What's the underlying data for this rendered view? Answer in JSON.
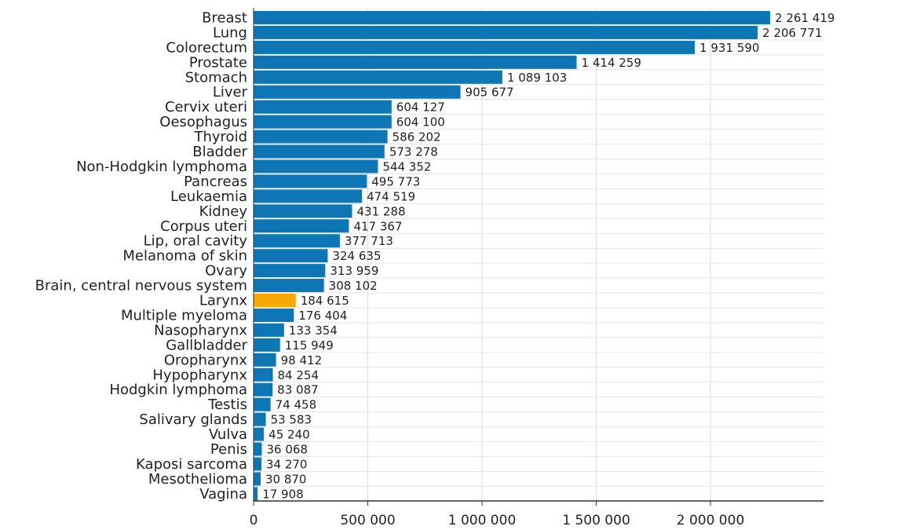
{
  "chart_data": {
    "type": "bar",
    "orientation": "horizontal",
    "categories": [
      "Breast",
      "Lung",
      "Colorectum",
      "Prostate",
      "Stomach",
      "Liver",
      "Cervix uteri",
      "Oesophagus",
      "Thyroid",
      "Bladder",
      "Non-Hodgkin lymphoma",
      "Pancreas",
      "Leukaemia",
      "Kidney",
      "Corpus uteri",
      "Lip, oral cavity",
      "Melanoma of skin",
      "Ovary",
      "Brain, central nervous system",
      "Larynx",
      "Multiple myeloma",
      "Nasopharynx",
      "Gallbladder",
      "Oropharynx",
      "Hypopharynx",
      "Hodgkin lymphoma",
      "Testis",
      "Salivary glands",
      "Vulva",
      "Penis",
      "Kaposi sarcoma",
      "Mesothelioma",
      "Vagina"
    ],
    "values": [
      2261419,
      2206771,
      1931590,
      1414259,
      1089103,
      905677,
      604127,
      604100,
      586202,
      573278,
      544352,
      495773,
      474519,
      431288,
      417367,
      377713,
      324635,
      313959,
      308102,
      184615,
      176404,
      133354,
      115949,
      98412,
      84254,
      83087,
      74458,
      53583,
      45240,
      36068,
      34270,
      30870,
      17908
    ],
    "value_labels": [
      "2 261 419",
      "2 206 771",
      "1 931 590",
      "1 414 259",
      "1 089 103",
      "905 677",
      "604 127",
      "604 100",
      "586 202",
      "573 278",
      "544 352",
      "495 773",
      "474 519",
      "431 288",
      "417 367",
      "377 713",
      "324 635",
      "313 959",
      "308 102",
      "184 615",
      "176 404",
      "133 354",
      "115 949",
      "98 412",
      "84 254",
      "83 087",
      "74 458",
      "53 583",
      "45 240",
      "36 068",
      "34 270",
      "30 870",
      "17 908"
    ],
    "highlight": "Larynx",
    "bar_color": "#0e76b4",
    "highlight_color": "#f7a800",
    "xlim": [
      0,
      2500000
    ],
    "xticks": [
      0,
      500000,
      1000000,
      1500000,
      2000000
    ],
    "xtick_labels": [
      "0",
      "500 000",
      "1 000 000",
      "1 500 000",
      "2 000 000"
    ],
    "grid": true,
    "title": "",
    "xlabel": "",
    "ylabel": ""
  }
}
